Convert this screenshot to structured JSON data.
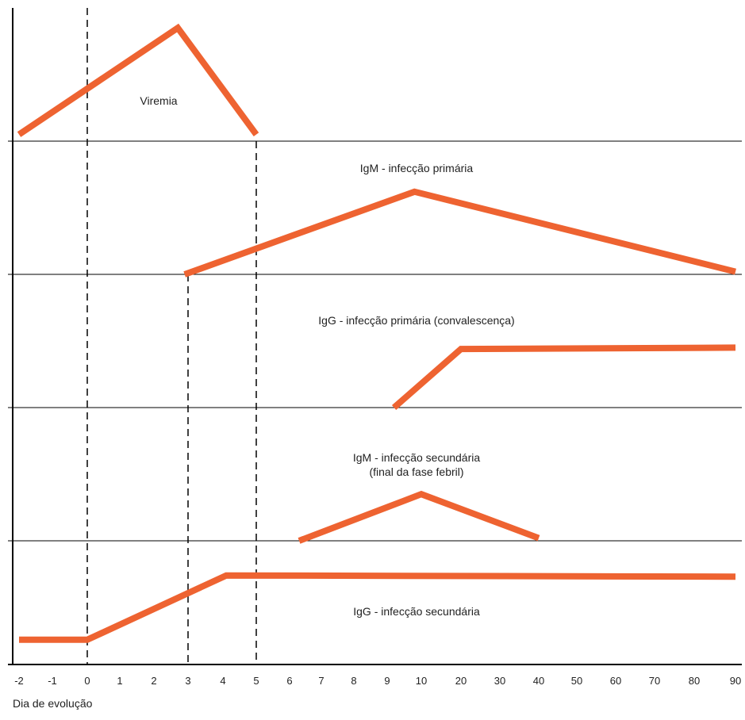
{
  "chart_data": {
    "type": "line",
    "title": "",
    "xlabel": "Dia de evolução",
    "ylabel": "",
    "x_ticks": [
      "-2",
      "-1",
      "0",
      "1",
      "2",
      "3",
      "4",
      "5",
      "6",
      "7",
      "8",
      "9",
      "10",
      "20",
      "30",
      "40",
      "50",
      "60",
      "70",
      "80",
      "90"
    ],
    "reference_lines_x": [
      "0",
      "3",
      "5"
    ],
    "grid": false,
    "legend": "none",
    "line_color": "#EE6331",
    "series": [
      {
        "label": "Viremia",
        "points": [
          [
            "-2",
            0.05
          ],
          [
            "2.7",
            0.85
          ],
          [
            "5",
            0.05
          ]
        ]
      },
      {
        "label": "IgM - infecção primária",
        "points": [
          [
            "2.9",
            0.0
          ],
          [
            "9.8",
            0.62
          ],
          [
            "90",
            0.02
          ]
        ]
      },
      {
        "label": "IgG - infecção primária (convalescença)",
        "points": [
          [
            "9.2",
            0.0
          ],
          [
            "20",
            0.44
          ],
          [
            "90",
            0.45
          ]
        ]
      },
      {
        "label": "IgM - infecção secundária\n(final da fase febril)",
        "points": [
          [
            "6.3",
            0.0
          ],
          [
            "10",
            0.35
          ],
          [
            "40",
            0.02
          ]
        ]
      },
      {
        "label": "IgG - infecção secundária",
        "points": [
          [
            "-2",
            0.2
          ],
          [
            "0",
            0.2
          ],
          [
            "4.1",
            0.72
          ],
          [
            "90",
            0.71
          ]
        ]
      }
    ]
  }
}
